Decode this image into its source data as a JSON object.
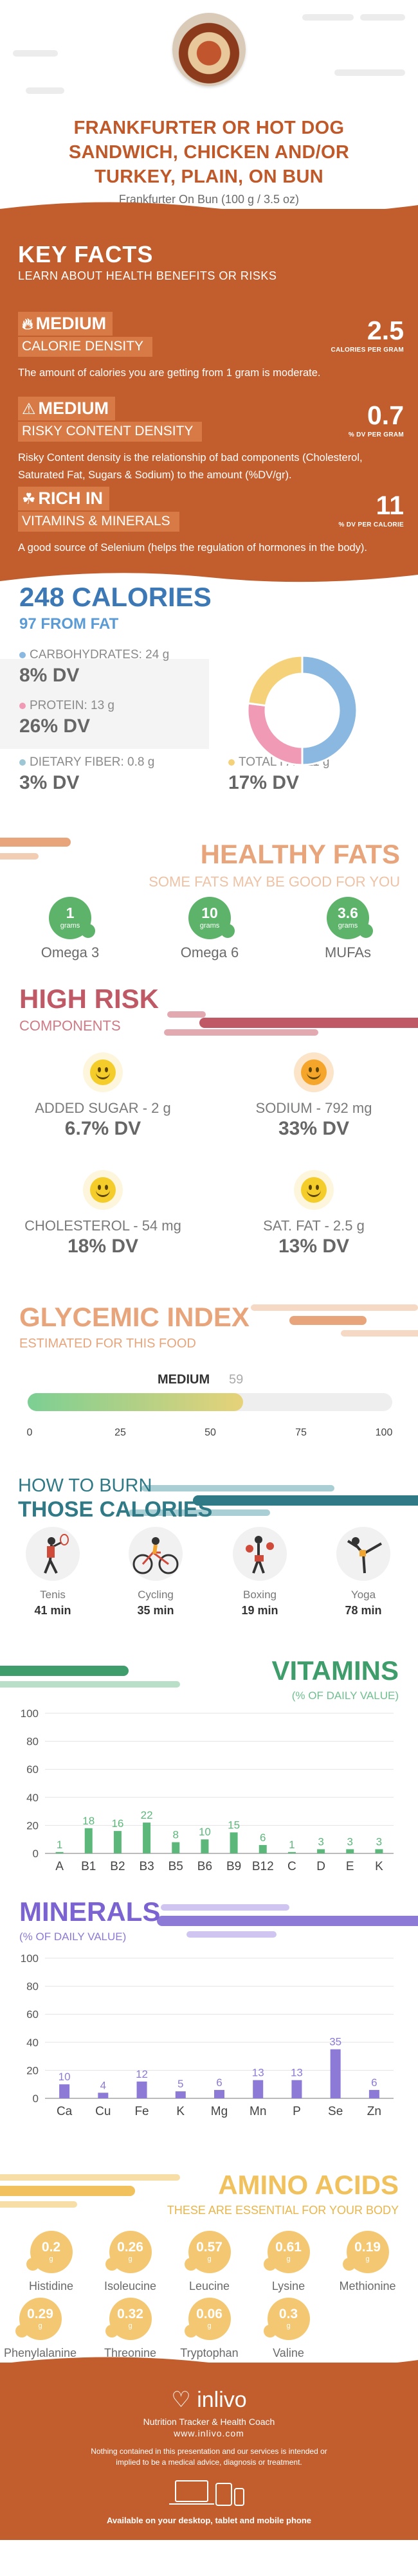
{
  "header": {
    "title_line1": "FRANKFURTER OR HOT DOG",
    "title_line2": "SANDWICH, CHICKEN AND/OR",
    "title_line3": "TURKEY, PLAIN, ON BUN",
    "serving": "Frankfurter On Bun (100 g / 3.5 oz)"
  },
  "key_facts": {
    "title": "KEY FACTS",
    "subtitle": "LEARN ABOUT HEALTH BENEFITS OR RISKS",
    "items": [
      {
        "level": "MEDIUM",
        "label": "CALORIE DENSITY",
        "desc": "The amount of calories you are getting from 1 gram is moderate.",
        "value": "2.5",
        "unit": "CALORIES PER GRAM",
        "icon": "flame-icon"
      },
      {
        "level": "MEDIUM",
        "label": "RISKY CONTENT DENSITY",
        "desc": "Risky Content density is the relationship of bad components (Cholesterol, Saturated Fat, Sugars & Sodium) to the amount (%DV/gr).",
        "value": "0.7",
        "unit": "% DV PER GRAM",
        "icon": "warning-icon"
      },
      {
        "level": "RICH  IN",
        "label": "VITAMINS & MINERALS",
        "desc": "A good source of Selenium (helps the regulation of hormones in the body).",
        "value": "11",
        "unit": "% DV PER CALORIE",
        "icon": "leaf-icon"
      }
    ]
  },
  "calories": {
    "title": "248 CALORIES",
    "from_fat": "97 FROM FAT",
    "macros": [
      {
        "label": "CARBOHYDRATES: 24 g",
        "dv": "8% DV",
        "color": "#8ab8e0"
      },
      {
        "label": "PROTEIN: 13 g",
        "dv": "26% DV",
        "color": "#f09ab5"
      },
      {
        "label": "DIETARY FIBER: 0.8 g",
        "dv": "3% DV",
        "color": "#9ec7d6"
      },
      {
        "label": "TOTAL FAT: 11 g",
        "dv": "17% DV",
        "color": "#f5d27a"
      }
    ]
  },
  "chart_data": [
    {
      "type": "pie",
      "categories": [
        "Carbohydrates",
        "Protein",
        "Total Fat"
      ],
      "values": [
        24,
        13,
        11
      ],
      "colors": [
        "#8ab8e0",
        "#f09ab5",
        "#f5d27a"
      ]
    },
    {
      "type": "bar",
      "title": "VITAMINS",
      "subtitle": "(% OF DAILY VALUE)",
      "categories": [
        "A",
        "B1",
        "B2",
        "B3",
        "B5",
        "B6",
        "B9",
        "B12",
        "C",
        "D",
        "E",
        "K"
      ],
      "values": [
        1,
        18,
        16,
        22,
        8,
        10,
        15,
        6,
        1,
        3,
        3,
        3
      ],
      "ylim": [
        0,
        100
      ],
      "yticks": [
        0,
        20,
        40,
        60,
        80,
        100
      ],
      "color": "#5cb87a"
    },
    {
      "type": "bar",
      "title": "MINERALS",
      "subtitle": "(% OF DAILY VALUE)",
      "categories": [
        "Ca",
        "Cu",
        "Fe",
        "K",
        "Mg",
        "Mn",
        "P",
        "Se",
        "Zn"
      ],
      "values": [
        10,
        4,
        12,
        5,
        6,
        13,
        13,
        35,
        6
      ],
      "ylim": [
        0,
        100
      ],
      "yticks": [
        0,
        20,
        40,
        60,
        80,
        100
      ],
      "color": "#8d7ad6"
    }
  ],
  "healthy_fats": {
    "title": "HEALTHY FATS",
    "subtitle": "SOME FATS MAY BE GOOD FOR YOU",
    "items": [
      {
        "value": "1",
        "unit": "grams",
        "name": "Omega 3"
      },
      {
        "value": "10",
        "unit": "grams",
        "name": "Omega 6"
      },
      {
        "value": "3.6",
        "unit": "grams",
        "name": "MUFAs"
      }
    ]
  },
  "high_risk": {
    "title": "HIGH RISK",
    "subtitle": "COMPONENTS",
    "items": [
      {
        "label": "ADDED SUGAR - 2 g",
        "dv": "6.7% DV"
      },
      {
        "label": "SODIUM - 792 mg",
        "dv": "33% DV"
      },
      {
        "label": "CHOLESTEROL - 54 mg",
        "dv": "18% DV"
      },
      {
        "label": "SAT. FAT - 2.5 g",
        "dv": "13% DV"
      }
    ]
  },
  "glycemic": {
    "title": "GLYCEMIC INDEX",
    "subtitle": "ESTIMATED FOR THIS FOOD",
    "level": "MEDIUM",
    "value": "59",
    "value_fraction": 0.59,
    "ticks": [
      "0",
      "25",
      "50",
      "75",
      "100"
    ]
  },
  "burn": {
    "title_line1": "HOW TO BURN",
    "title_line2": "THOSE CALORIES",
    "items": [
      {
        "name": "Tenis",
        "time": "41 min",
        "icon": "tennis-icon"
      },
      {
        "name": "Cycling",
        "time": "35 min",
        "icon": "cycling-icon"
      },
      {
        "name": "Boxing",
        "time": "19 min",
        "icon": "boxing-icon"
      },
      {
        "name": "Yoga",
        "time": "78 min",
        "icon": "yoga-icon"
      }
    ]
  },
  "vitamins": {
    "title": "VITAMINS",
    "subtitle": "(% OF DAILY VALUE)"
  },
  "minerals": {
    "title": "MINERALS",
    "subtitle": "(% OF DAILY VALUE)"
  },
  "amino": {
    "title": "AMINO ACIDS",
    "subtitle": "THESE ARE ESSENTIAL FOR YOUR BODY",
    "items": [
      {
        "value": "0.2",
        "unit": "g",
        "name": "Histidine"
      },
      {
        "value": "0.26",
        "unit": "g",
        "name": "Isoleucine"
      },
      {
        "value": "0.57",
        "unit": "g",
        "name": "Leucine"
      },
      {
        "value": "0.61",
        "unit": "g",
        "name": "Lysine"
      },
      {
        "value": "0.19",
        "unit": "g",
        "name": "Methionine"
      },
      {
        "value": "0.29",
        "unit": "g",
        "name": "Phenylalanine"
      },
      {
        "value": "0.32",
        "unit": "g",
        "name": "Threonine"
      },
      {
        "value": "0.06",
        "unit": "g",
        "name": "Tryptophan"
      },
      {
        "value": "0.3",
        "unit": "g",
        "name": "Valine"
      }
    ]
  },
  "footer": {
    "brand": "inlivo",
    "tagline": "Nutrition Tracker & Health Coach",
    "url": "www.inlivo.com",
    "disclaimer": "Nothing contained in this presentation and our services is intended or implied to be a medical advice, diagnosis or treatment.",
    "available": "Available on your desktop, tablet and mobile phone"
  }
}
